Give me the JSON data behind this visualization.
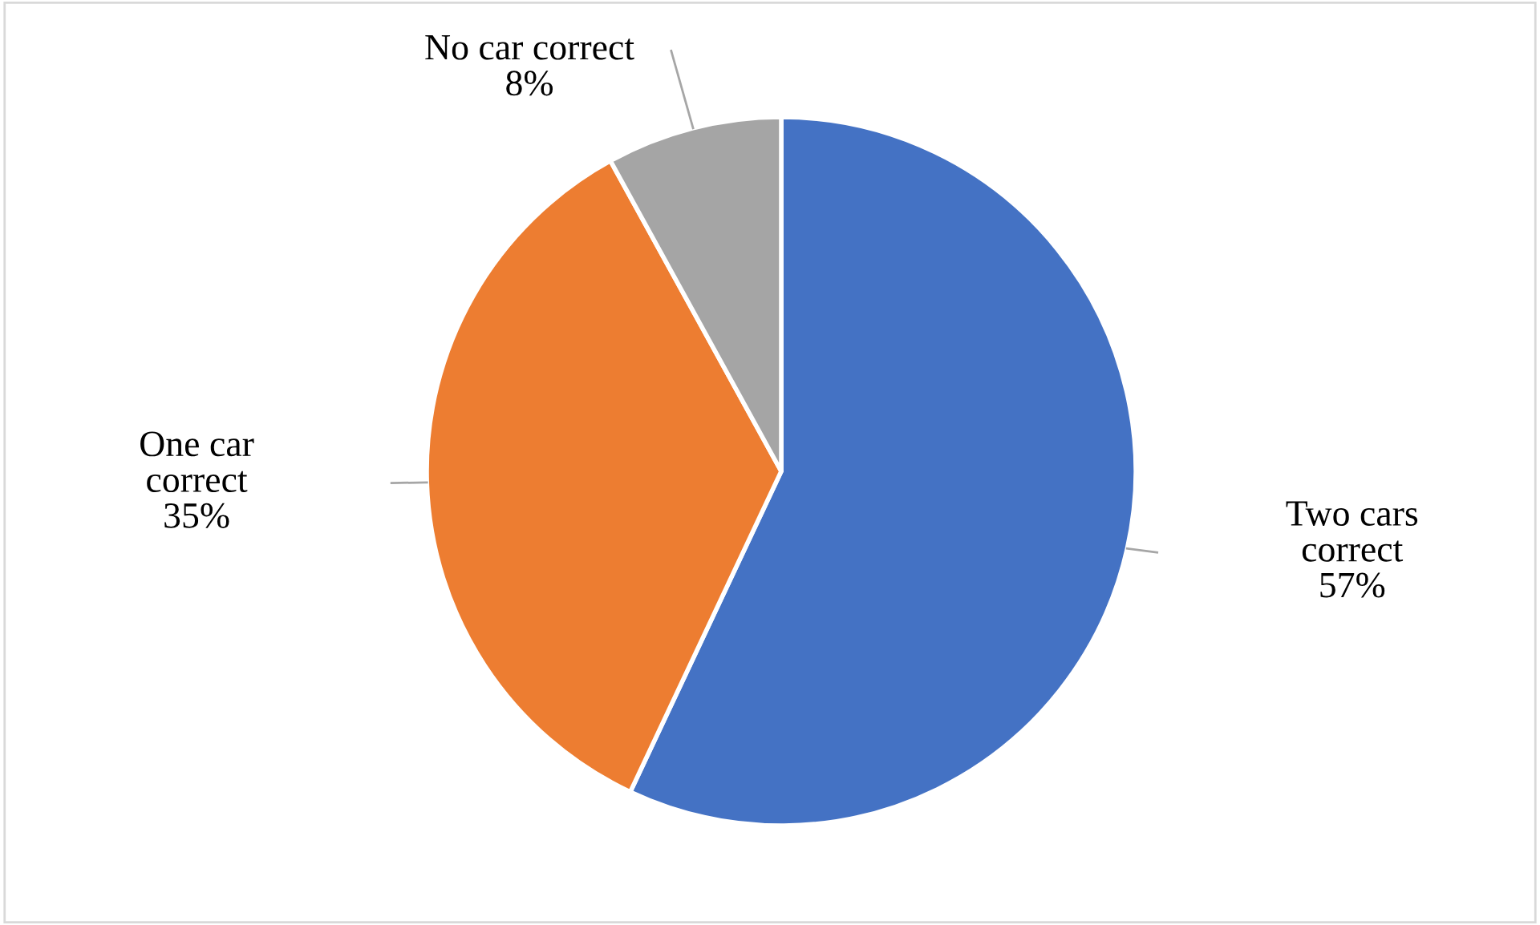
{
  "chart_data": {
    "type": "pie",
    "categories": [
      "Two cars\ncorrect",
      "One car\ncorrect",
      "No car correct"
    ],
    "values": [
      57,
      35,
      8
    ],
    "colors": [
      "#4472c4",
      "#ed7d31",
      "#a5a5a5"
    ],
    "value_labels": [
      "57%",
      "35%",
      "8%"
    ]
  }
}
